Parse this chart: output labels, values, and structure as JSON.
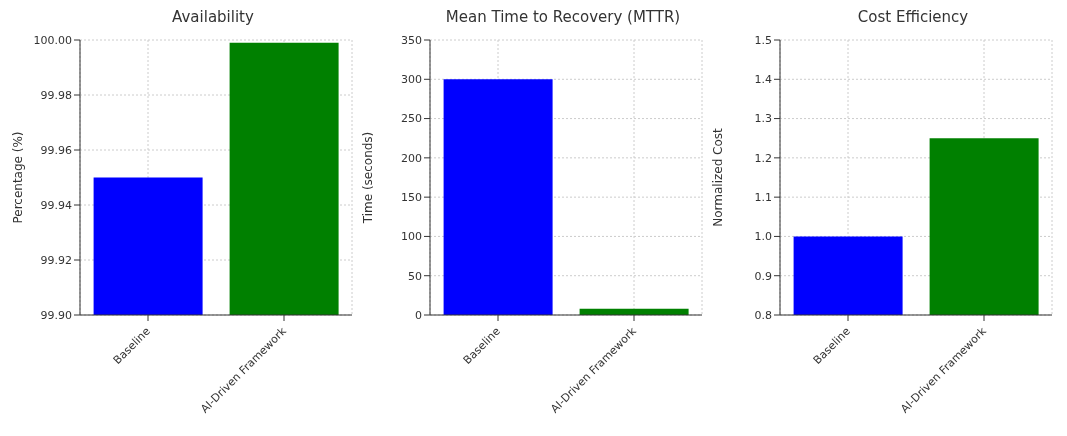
{
  "chart_data": [
    {
      "type": "bar",
      "title": "Availability",
      "ylabel": "Percentage (%)",
      "categories": [
        "Baseline",
        "AI-Driven Framework"
      ],
      "values": [
        99.95,
        99.999
      ],
      "colors": [
        "#0000ff",
        "#008000"
      ],
      "ylim": [
        99.9,
        100
      ],
      "yticks": [
        {
          "value": 99.9,
          "label": "99.90"
        },
        {
          "value": 99.92,
          "label": "99.92"
        },
        {
          "value": 99.94,
          "label": "99.94"
        },
        {
          "value": 99.96,
          "label": "99.96"
        },
        {
          "value": 99.98,
          "label": "99.98"
        },
        {
          "value": 100,
          "label": "100.00"
        }
      ],
      "grid": true
    },
    {
      "type": "bar",
      "title": "Mean Time to Recovery (MTTR)",
      "ylabel": "Time (seconds)",
      "categories": [
        "Baseline",
        "AI-Driven Framework"
      ],
      "values": [
        300,
        8
      ],
      "colors": [
        "#0000ff",
        "#008000"
      ],
      "ylim": [
        0,
        350
      ],
      "yticks": [
        0,
        50,
        100,
        150,
        200,
        250,
        300,
        350
      ],
      "grid": true
    },
    {
      "type": "bar",
      "title": "Cost Efficiency",
      "ylabel": "Normalized Cost",
      "categories": [
        "Baseline",
        "AI-Driven Framework"
      ],
      "values": [
        1.0,
        1.25
      ],
      "colors": [
        "#0000ff",
        "#008000"
      ],
      "ylim": [
        0.8,
        1.5
      ],
      "yticks": [
        0.8,
        0.9,
        {
          "value": 1.0,
          "label": "1.0"
        },
        1.1,
        1.2,
        1.3,
        1.4,
        1.5
      ],
      "grid": true
    }
  ]
}
